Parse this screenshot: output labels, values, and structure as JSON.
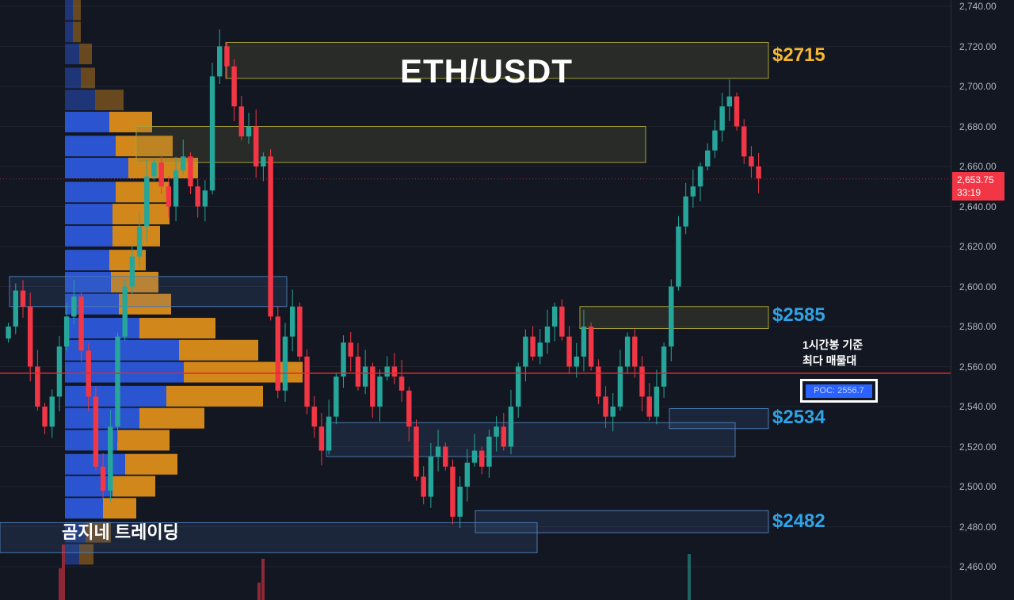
{
  "title": "ETH/USDT",
  "watermark": "곰지네 트레이딩",
  "note_line1": "1시간봉 기준",
  "note_line2": "최다 매물대",
  "poc_label": "POC: 2556.7",
  "last_price": "2,653.75",
  "countdown": "33:19",
  "levels": [
    {
      "label": "$2715",
      "price": 2715,
      "color": "#f5b82e"
    },
    {
      "label": "$2585",
      "price": 2585,
      "color": "#2fa3e6"
    },
    {
      "label": "$2534",
      "price": 2534,
      "color": "#2fa3e6"
    },
    {
      "label": "$2482",
      "price": 2482,
      "color": "#2fa3e6"
    }
  ],
  "colors": {
    "up": "#26a69a",
    "down": "#f23645",
    "poc_line": "#e02b2b",
    "vp_up": "#2d5ae0",
    "vp_down": "#e8931b"
  },
  "chart_data": {
    "type": "candlestick",
    "symbol": "ETH/USDT",
    "timeframe": "1h",
    "ylim": [
      2450,
      2745
    ],
    "y_ticks": [
      "2,740.00",
      "2,720.00",
      "2,700.00",
      "2,680.00",
      "2,660.00",
      "2,640.00",
      "2,620.00",
      "2,600.00",
      "2,580.00",
      "2,560.00",
      "2,540.00",
      "2,520.00",
      "2,500.00",
      "2,480.00",
      "2,460.00"
    ],
    "poc": 2556.7,
    "last_price": 2653.75,
    "close_path": [
      2580,
      2598,
      2590,
      2560,
      2540,
      2530,
      2545,
      2570,
      2585,
      2595,
      2568,
      2545,
      2510,
      2498,
      2530,
      2575,
      2600,
      2615,
      2630,
      2655,
      2662,
      2650,
      2640,
      2658,
      2665,
      2650,
      2640,
      2648,
      2705,
      2720,
      2710,
      2690,
      2675,
      2680,
      2660,
      2665,
      2585,
      2548,
      2575,
      2590,
      2565,
      2540,
      2530,
      2518,
      2535,
      2555,
      2572,
      2565,
      2550,
      2560,
      2540,
      2555,
      2560,
      2555,
      2548,
      2530,
      2505,
      2495,
      2515,
      2520,
      2510,
      2485,
      2500,
      2512,
      2518,
      2510,
      2525,
      2530,
      2520,
      2540,
      2560,
      2575,
      2565,
      2572,
      2580,
      2590,
      2575,
      2560,
      2565,
      2580,
      2560,
      2545,
      2535,
      2540,
      2560,
      2575,
      2560,
      2545,
      2535,
      2550,
      2570,
      2600,
      2630,
      2645,
      2650,
      2660,
      2668,
      2678,
      2690,
      2695,
      2680,
      2665,
      2660,
      2654
    ],
    "zones": [
      {
        "from": 2704,
        "to": 2722,
        "kind": "supply"
      },
      {
        "from": 2662,
        "to": 2680,
        "kind": "supply"
      },
      {
        "from": 2590,
        "to": 2605,
        "kind": "demand"
      },
      {
        "from": 2579,
        "to": 2590,
        "kind": "supply"
      },
      {
        "from": 2529,
        "to": 2539,
        "kind": "demand"
      },
      {
        "from": 2515,
        "to": 2532,
        "kind": "demand"
      },
      {
        "from": 2477,
        "to": 2488,
        "kind": "demand"
      },
      {
        "from": 2467,
        "to": 2482,
        "kind": "demand"
      }
    ],
    "volume_profile": [
      {
        "price": 2738,
        "buy": 5,
        "sell": 5
      },
      {
        "price": 2727,
        "buy": 5,
        "sell": 5
      },
      {
        "price": 2716,
        "buy": 9,
        "sell": 8
      },
      {
        "price": 2704,
        "buy": 10,
        "sell": 9
      },
      {
        "price": 2693,
        "buy": 19,
        "sell": 18
      },
      {
        "price": 2682,
        "buy": 28,
        "sell": 27
      },
      {
        "price": 2670,
        "buy": 32,
        "sell": 36
      },
      {
        "price": 2659,
        "buy": 40,
        "sell": 44
      },
      {
        "price": 2647,
        "buy": 32,
        "sell": 34
      },
      {
        "price": 2636,
        "buy": 30,
        "sell": 36
      },
      {
        "price": 2625,
        "buy": 30,
        "sell": 30
      },
      {
        "price": 2613,
        "buy": 28,
        "sell": 23
      },
      {
        "price": 2602,
        "buy": 29,
        "sell": 30
      },
      {
        "price": 2591,
        "buy": 34,
        "sell": 33
      },
      {
        "price": 2579,
        "buy": 47,
        "sell": 48
      },
      {
        "price": 2568,
        "buy": 72,
        "sell": 50
      },
      {
        "price": 2557,
        "buy": 75,
        "sell": 75
      },
      {
        "price": 2545,
        "buy": 64,
        "sell": 61
      },
      {
        "price": 2534,
        "buy": 47,
        "sell": 41
      },
      {
        "price": 2523,
        "buy": 33,
        "sell": 33
      },
      {
        "price": 2511,
        "buy": 38,
        "sell": 33
      },
      {
        "price": 2500,
        "buy": 30,
        "sell": 27
      },
      {
        "price": 2489,
        "buy": 24,
        "sell": 21
      },
      {
        "price": 2477,
        "buy": 13,
        "sell": 16
      },
      {
        "price": 2466,
        "buy": 9,
        "sell": 9
      }
    ]
  }
}
